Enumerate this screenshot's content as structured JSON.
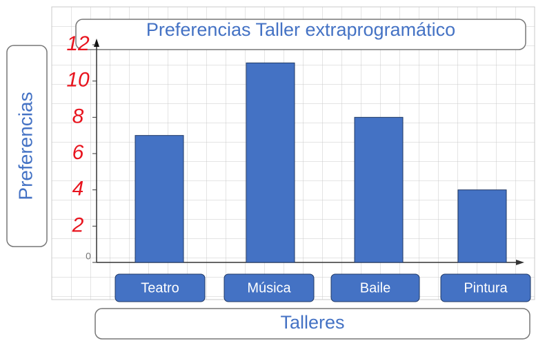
{
  "chart_data": {
    "type": "bar",
    "title": "Preferencias Taller extraprogramático",
    "x_label": "Talleres",
    "y_label": "Preferencias",
    "categories": [
      "Teatro",
      "Música",
      "Baile",
      "Pintura"
    ],
    "values": [
      7,
      11,
      8,
      4
    ],
    "color": "#4472c4",
    "ylim": [
      0,
      12
    ],
    "yticks": [
      0,
      2,
      4,
      6,
      8,
      10,
      12
    ],
    "grid": true
  }
}
